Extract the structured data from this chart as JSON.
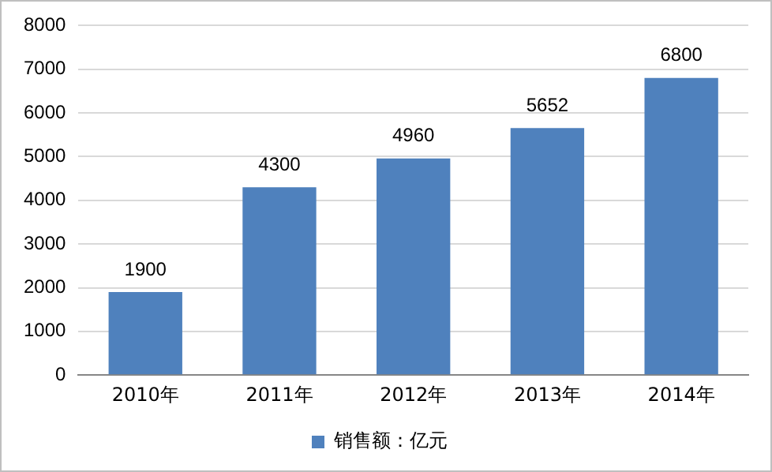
{
  "chart_data": {
    "type": "bar",
    "categories": [
      "2010年",
      "2011年",
      "2012年",
      "2013年",
      "2014年"
    ],
    "series": [
      {
        "name": "销售额：亿元",
        "color": "#4f81bd",
        "values": [
          1900,
          4300,
          4960,
          5652,
          6800
        ]
      }
    ],
    "ylim": [
      0,
      8000
    ],
    "yticks": [
      0,
      1000,
      2000,
      3000,
      4000,
      5000,
      6000,
      7000,
      8000
    ],
    "grid": "y",
    "legend": "bottom",
    "data_labels": true
  }
}
